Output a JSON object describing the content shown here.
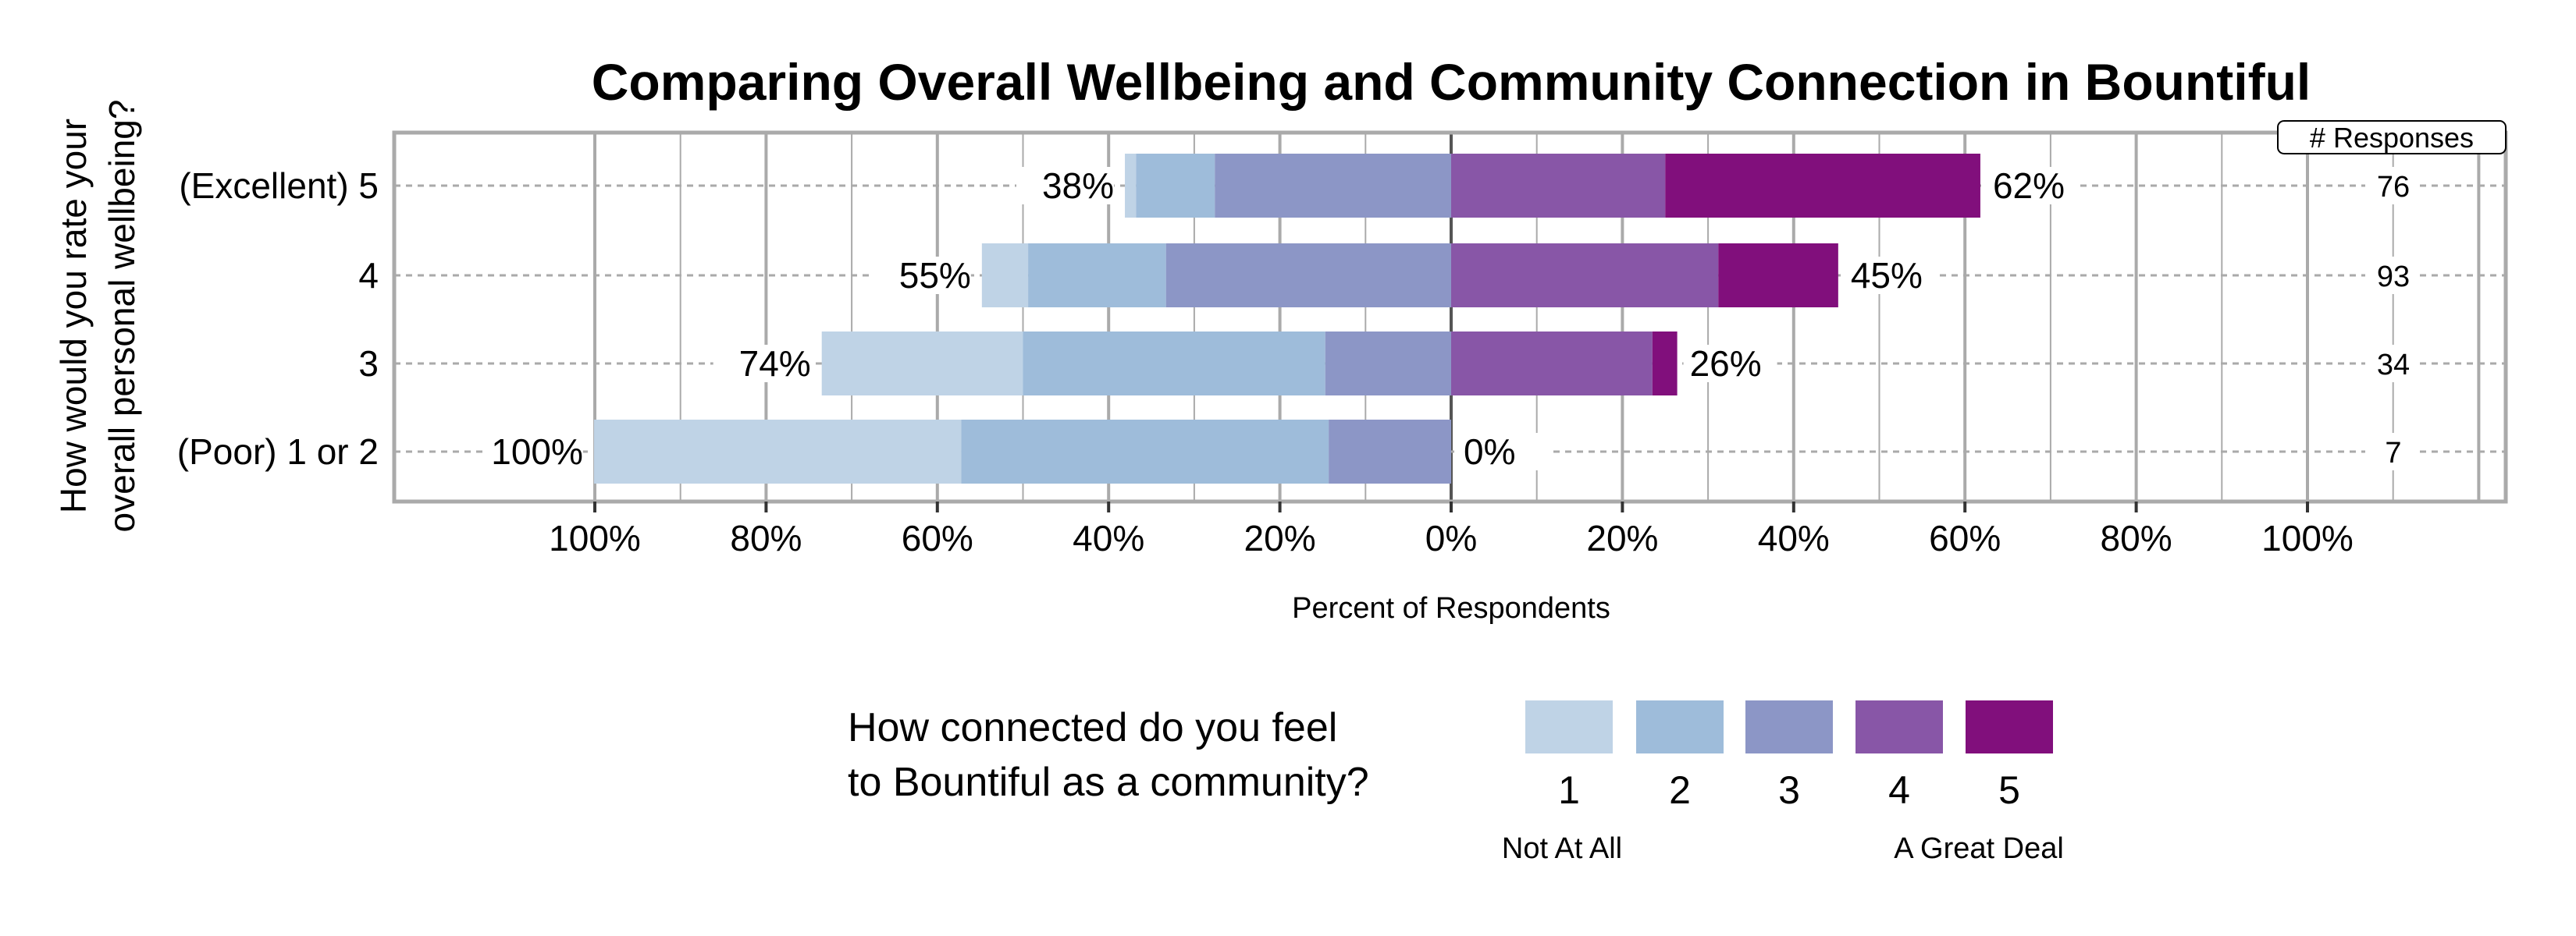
{
  "chart_data": {
    "type": "bar",
    "subtype": "diverging-stacked-horizontal",
    "title": "Comparing Overall Wellbeing and Community Connection in Bountiful",
    "ylabel_lines": [
      "How would you rate your",
      "overall personal wellbeing?"
    ],
    "xlabel": "Percent of Respondents",
    "xlim": [
      -100,
      100
    ],
    "x_ticks": [
      "100%",
      "80%",
      "60%",
      "40%",
      "20%",
      "0%",
      "20%",
      "40%",
      "60%",
      "80%",
      "100%"
    ],
    "grid": true,
    "categories": [
      "(Excellent) 5",
      "4",
      "3",
      "(Poor) 1 or 2"
    ],
    "series": [
      {
        "name": "1",
        "color": "#bfd3e6",
        "values": [
          1.3,
          5.4,
          23.5,
          42.9
        ]
      },
      {
        "name": "2",
        "color": "#9ebcda",
        "values": [
          9.2,
          16.1,
          35.3,
          42.9
        ]
      },
      {
        "name": "3",
        "color": "#8c96c6",
        "values": [
          27.6,
          33.3,
          14.7,
          14.3
        ]
      },
      {
        "name": "4",
        "color": "#8856a7",
        "values": [
          25.0,
          31.2,
          23.5,
          0
        ]
      },
      {
        "name": "5",
        "color": "#810f7c",
        "values": [
          36.8,
          14.0,
          2.9,
          0
        ]
      }
    ],
    "left_totals": [
      "38%",
      "55%",
      "74%",
      "100%"
    ],
    "right_totals": [
      "62%",
      "45%",
      "26%",
      "0%"
    ],
    "responses_header": "# Responses",
    "responses": [
      "76",
      "93",
      "34",
      "7"
    ],
    "legend": {
      "title_lines": [
        "How connected do you feel",
        "to Bountiful as a community?"
      ],
      "labels": [
        "1",
        "2",
        "3",
        "4",
        "5"
      ],
      "low_anchor": "Not At All",
      "high_anchor": "A Great Deal",
      "placement": "bottom"
    }
  }
}
